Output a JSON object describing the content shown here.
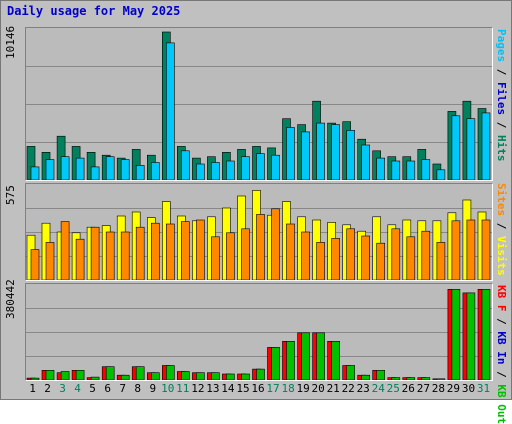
{
  "title": "Daily usage for May 2025",
  "colors": {
    "hits": "#00805c",
    "files": "#00c8f8",
    "pages": "#00c0f8",
    "visits": "#ffff00",
    "sites": "#ff8800",
    "kbin": "#00e000",
    "kbout": "#00c000",
    "kbf": "#ff0000",
    "day_normal": "#000000",
    "day_weekend": "#00805c"
  },
  "panels": {
    "hits": {
      "ymax_label": "10146"
    },
    "visits": {
      "ymax_label": "575"
    },
    "kb": {
      "ymax_label": "380442"
    }
  },
  "legends": {
    "hits": [
      {
        "text": "Pages",
        "color": "#00c0f8"
      },
      {
        "text": " / ",
        "color": "#000000"
      },
      {
        "text": "Files",
        "color": "#0000cc"
      },
      {
        "text": " / ",
        "color": "#000000"
      },
      {
        "text": "Hits",
        "color": "#00805c"
      }
    ],
    "visits": [
      {
        "text": "Sites",
        "color": "#ff8800"
      },
      {
        "text": " / ",
        "color": "#000000"
      },
      {
        "text": "Visits",
        "color": "#ffff00"
      }
    ],
    "kb": [
      {
        "text": "KB F",
        "color": "#ff0000"
      },
      {
        "text": " / ",
        "color": "#000000"
      },
      {
        "text": "KB In",
        "color": "#0000cc"
      },
      {
        "text": " / ",
        "color": "#000000"
      },
      {
        "text": "KB Out",
        "color": "#00c000"
      }
    ]
  },
  "chart_data": {
    "type": "bar",
    "title": "Daily usage for May 2025",
    "categories": [
      "1",
      "2",
      "3",
      "4",
      "5",
      "6",
      "7",
      "8",
      "9",
      "10",
      "11",
      "12",
      "13",
      "14",
      "15",
      "16",
      "17",
      "18",
      "19",
      "20",
      "21",
      "22",
      "23",
      "24",
      "25",
      "26",
      "27",
      "28",
      "29",
      "30",
      "31"
    ],
    "weekend_days": [
      "3",
      "4",
      "10",
      "11",
      "17",
      "18",
      "24",
      "25",
      "31"
    ],
    "panels": [
      {
        "name": "hits-files-pages",
        "ylim": [
          0,
          10146
        ],
        "series": [
          {
            "name": "Hits",
            "values": [
              2300,
              1900,
              3000,
              2300,
              1900,
              1700,
              1500,
              2100,
              1700,
              10146,
              2300,
              1500,
              1600,
              1900,
              2100,
              2300,
              2200,
              4200,
              3800,
              5400,
              3900,
              4000,
              2800,
              2000,
              1600,
              1600,
              2100,
              1100,
              4700,
              5400,
              4900
            ]
          },
          {
            "name": "Files",
            "values": [
              900,
              1400,
              1600,
              1500,
              900,
              1600,
              1400,
              1000,
              1200,
              9400,
              2000,
              1100,
              1200,
              1300,
              1600,
              1800,
              1700,
              3600,
              3300,
              3900,
              3800,
              3400,
              2400,
              1500,
              1300,
              1300,
              1400,
              700,
              4400,
              4200,
              4600
            ]
          },
          {
            "name": "Pages",
            "values": [
              900,
              1400,
              1600,
              1500,
              900,
              1600,
              1400,
              1000,
              1200,
              9400,
              2000,
              1100,
              1200,
              1300,
              1600,
              1800,
              1700,
              3600,
              3300,
              3900,
              3800,
              3400,
              2400,
              1500,
              1300,
              1300,
              1400,
              700,
              4400,
              4200,
              4600
            ]
          }
        ]
      },
      {
        "name": "visits-sites",
        "ylim": [
          0,
          575
        ],
        "series": [
          {
            "name": "Visits",
            "values": [
              280,
              355,
              300,
              295,
              330,
              340,
              400,
              425,
              390,
              490,
              400,
              370,
              395,
              450,
              525,
              560,
              405,
              490,
              395,
              375,
              360,
              345,
              305,
              395,
              345,
              375,
              370,
              370,
              420,
              500,
              425
            ]
          },
          {
            "name": "Sites",
            "values": [
              190,
              235,
              365,
              255,
              330,
              300,
              300,
              330,
              355,
              350,
              365,
              375,
              270,
              295,
              320,
              410,
              445,
              350,
              300,
              235,
              260,
              320,
              275,
              230,
              320,
              270,
              305,
              235,
              370,
              375,
              375
            ]
          }
        ]
      },
      {
        "name": "kb",
        "ylim": [
          0,
          380442
        ],
        "series": [
          {
            "name": "KB F",
            "values": [
              8000,
              40000,
              30000,
              40000,
              10000,
              55000,
              20000,
              55000,
              30000,
              60000,
              35000,
              30000,
              30000,
              25000,
              25000,
              45000,
              135000,
              160000,
              195000,
              195000,
              160000,
              60000,
              20000,
              40000,
              10000,
              10000,
              10000,
              5000,
              375000,
              360000,
              375000
            ]
          },
          {
            "name": "KB In",
            "values": [
              8000,
              40000,
              30000,
              40000,
              10000,
              55000,
              20000,
              55000,
              30000,
              60000,
              35000,
              30000,
              30000,
              25000,
              25000,
              45000,
              135000,
              160000,
              195000,
              195000,
              160000,
              60000,
              20000,
              40000,
              10000,
              10000,
              10000,
              5000,
              375000,
              360000,
              375000
            ]
          },
          {
            "name": "KB Out",
            "values": [
              8000,
              40000,
              35000,
              40000,
              12000,
              55000,
              20000,
              55000,
              30000,
              60000,
              35000,
              30000,
              30000,
              25000,
              25000,
              45000,
              135000,
              160000,
              195000,
              195000,
              160000,
              60000,
              20000,
              40000,
              10000,
              10000,
              10000,
              5000,
              375000,
              360000,
              375000
            ]
          }
        ]
      }
    ]
  }
}
